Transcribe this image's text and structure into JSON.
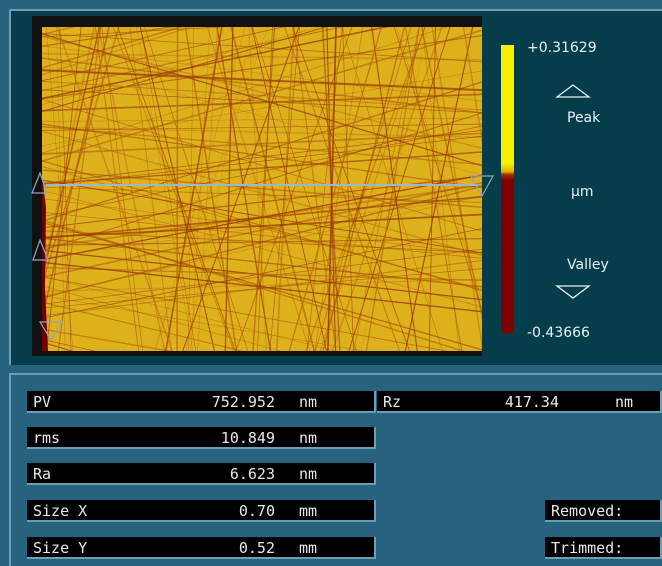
{
  "colors": {
    "peak": "#f6f200",
    "valley": "#7f0000",
    "panel_bg": "#053d4a",
    "outer_bg": "#27637f",
    "field_bg": "#000000",
    "profile_line": "#9fb6d0"
  },
  "legend": {
    "max_value": "+0.31629",
    "min_value": "-0.43666",
    "peak_label": "Peak",
    "unit_label": "µm",
    "valley_label": "Valley",
    "peak_arrow_icon": "triangle-up-outline-icon",
    "valley_arrow_icon": "triangle-down-outline-icon"
  },
  "surface_map": {
    "description_icon": "surface-height-map",
    "cursor_icons": [
      "triangle-right-outline-icon",
      "triangle-left-outline-icon",
      "triangle-up-outline-icon",
      "triangle-down-outline-icon"
    ]
  },
  "stats": [
    {
      "id": "pv",
      "label": "PV",
      "value": "752.952",
      "unit": "nm"
    },
    {
      "id": "rms",
      "label": "rms",
      "value": "10.849",
      "unit": "nm"
    },
    {
      "id": "ra",
      "label": "Ra",
      "value": "6.623",
      "unit": "nm"
    },
    {
      "id": "size-x",
      "label": "Size X",
      "value": "0.70",
      "unit": "mm"
    },
    {
      "id": "size-y",
      "label": "Size Y",
      "value": "0.52",
      "unit": "mm"
    }
  ],
  "rz": {
    "label": "Rz",
    "value": "417.34",
    "unit": "nm"
  },
  "removed_label": "Removed:",
  "trimmed_label": "Trimmed:"
}
